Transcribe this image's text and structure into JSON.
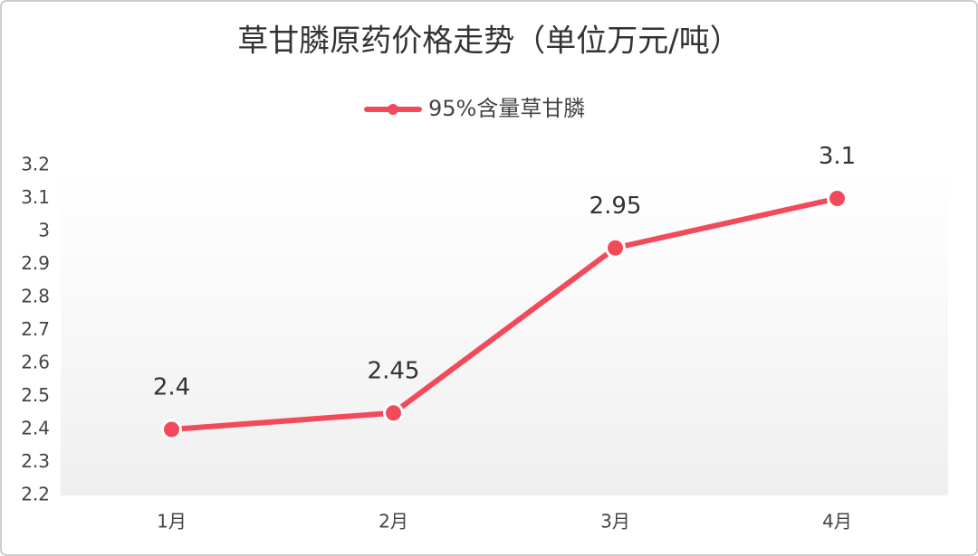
{
  "chart_data": {
    "type": "line",
    "title": "草甘膦原药价格走势（单位万元/吨）",
    "categories": [
      "1月",
      "2月",
      "3月",
      "4月"
    ],
    "series": [
      {
        "name": "95%含量草甘膦",
        "color": "#f24a5b",
        "values": [
          2.4,
          2.45,
          2.95,
          3.1
        ]
      }
    ],
    "ylim": [
      2.2,
      3.2
    ],
    "yticks": [
      2.2,
      2.3,
      2.4,
      2.5,
      2.6,
      2.7,
      2.8,
      2.9,
      3,
      3.1,
      3.2
    ],
    "grid": false,
    "legend": "top"
  }
}
